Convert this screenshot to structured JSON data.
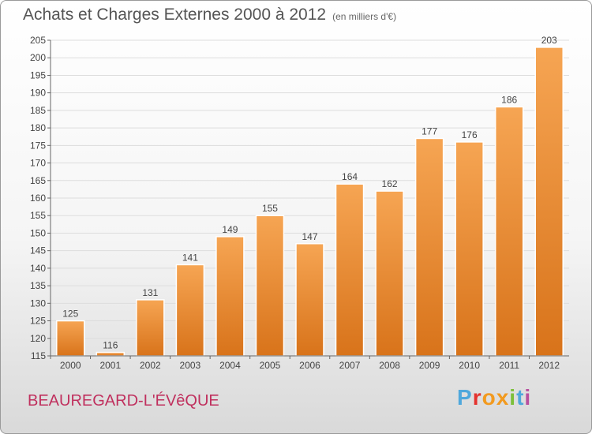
{
  "header": {
    "title": "Achats et Charges Externes 2000 à 2012",
    "units": "(en milliers d'€)"
  },
  "footer": {
    "commune": "BEAUREGARD-L'ÉVêQUE",
    "logo": [
      "P",
      "r",
      "o",
      "x",
      "i",
      "t",
      "i"
    ]
  },
  "colors": {
    "bar_top": "#f6a553",
    "bar_bottom": "#d8731a",
    "text": "#444444",
    "grid": "#dddddd"
  },
  "chart_data": {
    "type": "bar",
    "title": "Achats et Charges Externes 2000 à 2012",
    "xlabel": "",
    "ylabel": "",
    "categories": [
      "2000",
      "2001",
      "2002",
      "2003",
      "2004",
      "2005",
      "2006",
      "2007",
      "2008",
      "2009",
      "2010",
      "2011",
      "2012"
    ],
    "values": [
      125,
      116,
      131,
      141,
      149,
      155,
      147,
      164,
      162,
      177,
      176,
      186,
      203
    ],
    "ylim": [
      115,
      205
    ],
    "yticks": [
      115,
      120,
      125,
      130,
      135,
      140,
      145,
      150,
      155,
      160,
      165,
      170,
      175,
      180,
      185,
      190,
      195,
      200,
      205
    ],
    "grid": true,
    "legend": "none"
  }
}
